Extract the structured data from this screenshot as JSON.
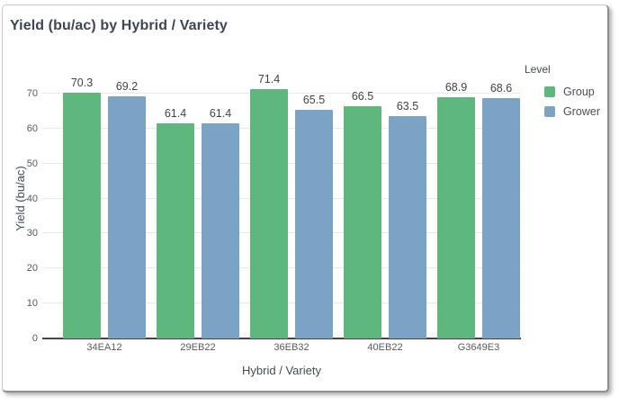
{
  "page": {
    "title": "Yield (bu/ac) by Hybrid / Variety"
  },
  "colors": {
    "series_group": "#5eb87d",
    "series_grower": "#7ba3c5",
    "title_text": "#3b4656",
    "axis_text": "#57595c",
    "axis_line": "#434343",
    "gridline": "#e9e9e9"
  },
  "chart_data": {
    "type": "bar",
    "title": "Yield (bu/ac) by Hybrid / Variety",
    "xlabel": "Hybrid / Variety",
    "ylabel": "Yield (bu/ac)",
    "categories": [
      "34EA12",
      "29EB22",
      "36EB32",
      "40EB22",
      "G3649E3"
    ],
    "series": [
      {
        "name": "Group",
        "color": "#5eb87d",
        "values": [
          70.3,
          61.4,
          71.4,
          66.5,
          68.9
        ]
      },
      {
        "name": "Grower",
        "color": "#7ba3c5",
        "values": [
          69.2,
          61.4,
          65.5,
          63.5,
          68.6
        ]
      }
    ],
    "ylim": [
      0,
      75
    ],
    "yticks": [
      0,
      10,
      20,
      30,
      40,
      50,
      60,
      70
    ],
    "grid": true,
    "data_labels": true,
    "legend": {
      "title": "Level",
      "position": "right"
    }
  }
}
